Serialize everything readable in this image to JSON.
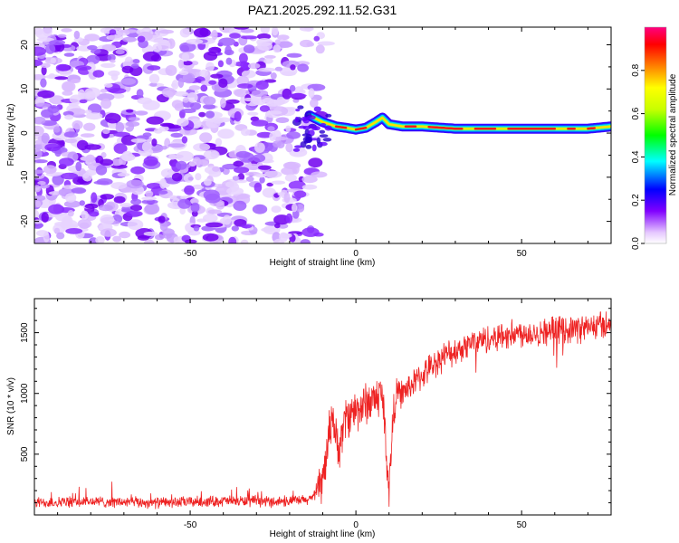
{
  "title": "PAZ1.2025.292.11.52.G31",
  "chart_data": [
    {
      "type": "heatmap",
      "name": "spectrogram",
      "xlabel": "Height of straight line (km)",
      "ylabel": "Frequency (Hz)",
      "xlim": [
        -97,
        77
      ],
      "ylim": [
        -25,
        24
      ],
      "x_ticks": [
        -50,
        0,
        50
      ],
      "y_ticks": [
        -20,
        -10,
        0,
        10,
        20
      ],
      "x_tick_labels": [
        "-50",
        "0",
        "50"
      ],
      "y_tick_labels": [
        "-20",
        "-10",
        "0",
        "10",
        "20"
      ],
      "colorbar": {
        "label": "Normalized spectral amplitude",
        "range": [
          0,
          1
        ],
        "ticks": [
          0.0,
          0.2,
          0.4,
          0.6,
          0.8
        ],
        "tick_labels": [
          "0.0",
          "0.2",
          "0.4",
          "0.6",
          "0.8"
        ]
      },
      "description": "Scattered low-amplitude noise for heights below about -15 km; a narrow high-amplitude line near 0-2 Hz from about -15 km to 77 km",
      "signal_line": {
        "x": [
          -14,
          -10,
          -6,
          -3,
          0,
          3,
          6,
          8,
          10,
          14,
          20,
          30,
          40,
          50,
          60,
          70,
          77
        ],
        "freq": [
          4,
          2.5,
          1.5,
          1.2,
          0.8,
          1.2,
          2.5,
          3.5,
          2,
          1.5,
          1.5,
          1,
          1,
          1,
          1,
          1,
          1.5
        ]
      }
    },
    {
      "type": "line",
      "name": "snr",
      "xlabel": "Height of straight line (km)",
      "ylabel": "SNR (10 * v/v)",
      "xlim": [
        -97,
        77
      ],
      "ylim": [
        0,
        1780
      ],
      "x_ticks": [
        -50,
        0,
        50
      ],
      "y_ticks": [
        500,
        1000,
        1500
      ],
      "x_tick_labels": [
        "-50",
        "0",
        "50"
      ],
      "y_tick_labels": [
        "500",
        "1000",
        "1500"
      ],
      "color": "#ee2222",
      "series": [
        {
          "name": "SNR",
          "x": [
            -97,
            -80,
            -60,
            -40,
            -25,
            -15,
            -12,
            -10,
            -9,
            -8,
            -7,
            -6,
            -5,
            -4,
            -3,
            -1,
            2,
            5,
            8,
            9,
            10,
            11,
            12,
            14,
            18,
            22,
            26,
            30,
            35,
            40,
            45,
            50,
            55,
            60,
            65,
            70,
            77
          ],
          "y": [
            100,
            110,
            100,
            115,
            110,
            120,
            160,
            300,
            450,
            700,
            850,
            600,
            550,
            700,
            800,
            850,
            900,
            950,
            1000,
            600,
            200,
            700,
            1000,
            1000,
            1100,
            1200,
            1300,
            1350,
            1420,
            1450,
            1480,
            1500,
            1500,
            1520,
            1530,
            1540,
            1580
          ]
        }
      ]
    }
  ]
}
